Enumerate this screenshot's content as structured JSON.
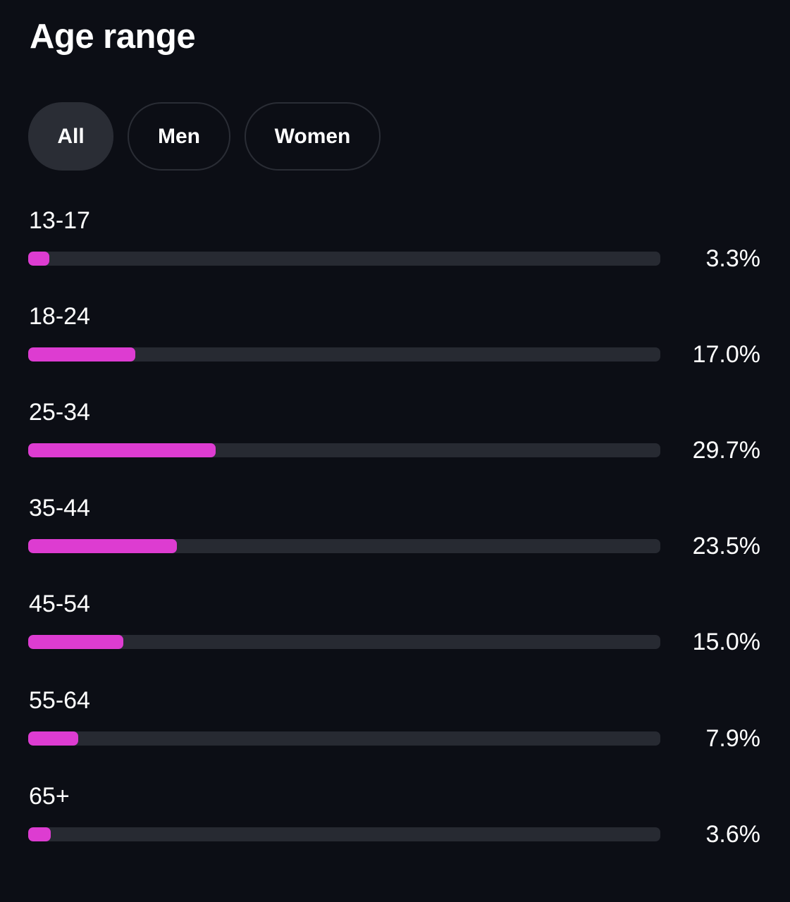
{
  "title": "Age range",
  "filters": [
    {
      "label": "All",
      "active": true
    },
    {
      "label": "Men",
      "active": false
    },
    {
      "label": "Women",
      "active": false
    }
  ],
  "colors": {
    "background": "#0c0e15",
    "bar_fill": "#dd3cd1",
    "bar_track": "#272a32",
    "active_pill": "#2a2d35"
  },
  "bar_scale_max_percent": 100,
  "rows": [
    {
      "label": "13-17",
      "value": 3.3,
      "display": "3.3%"
    },
    {
      "label": "18-24",
      "value": 17.0,
      "display": "17.0%"
    },
    {
      "label": "25-34",
      "value": 29.7,
      "display": "29.7%"
    },
    {
      "label": "35-44",
      "value": 23.5,
      "display": "23.5%"
    },
    {
      "label": "45-54",
      "value": 15.0,
      "display": "15.0%"
    },
    {
      "label": "55-64",
      "value": 7.9,
      "display": "7.9%"
    },
    {
      "label": "65+",
      "value": 3.6,
      "display": "3.6%"
    }
  ]
}
